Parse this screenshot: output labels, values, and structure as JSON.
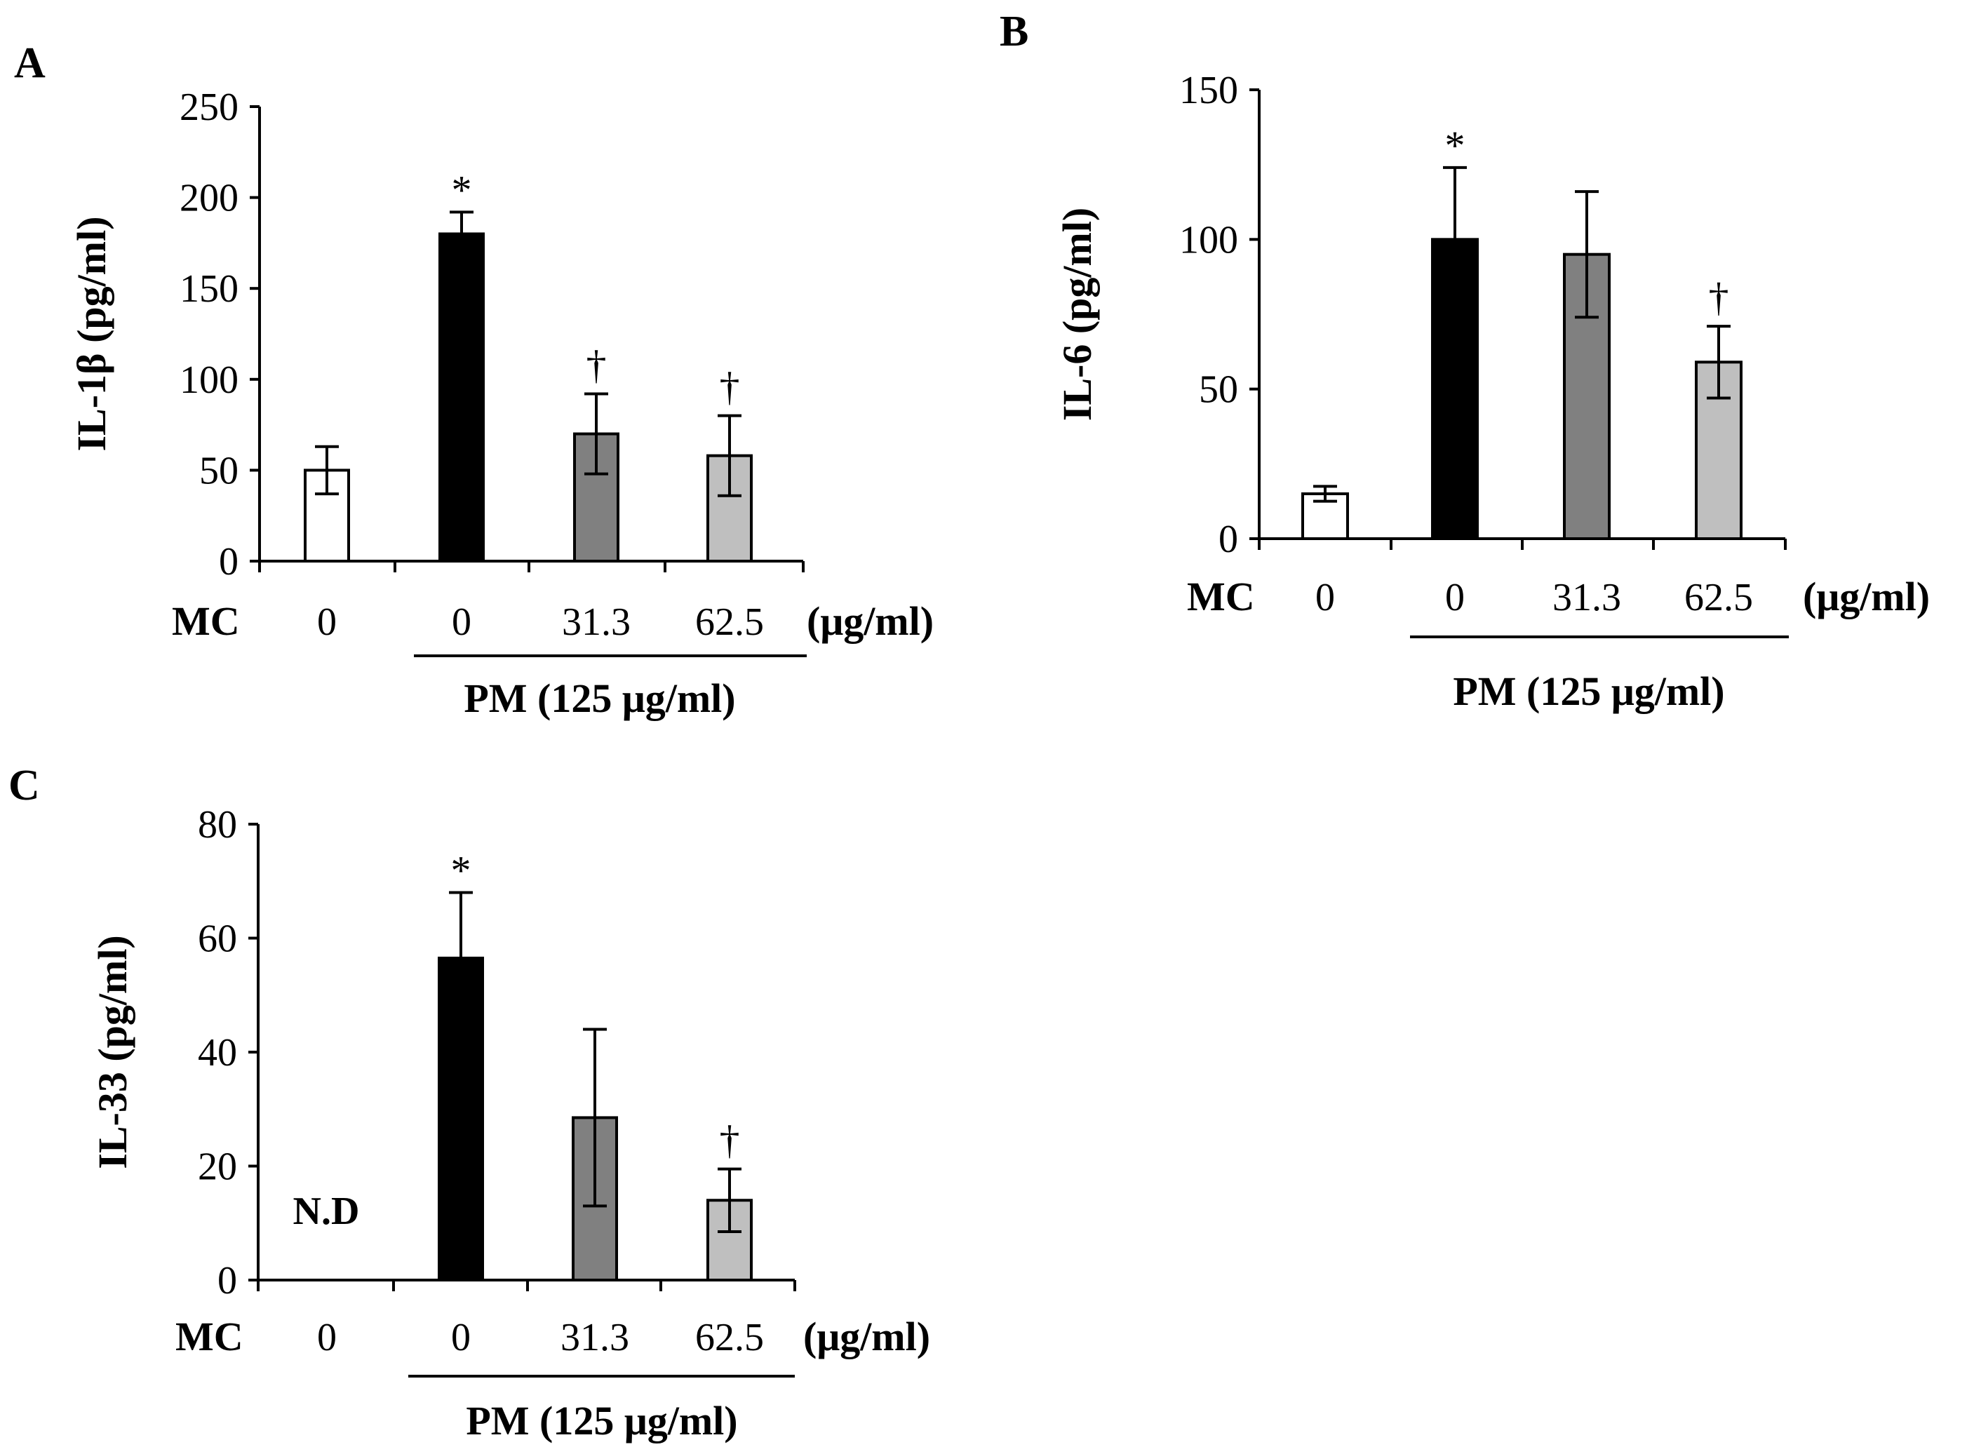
{
  "chart_data": [
    {
      "type": "bar",
      "panel": "A",
      "ylabel": "IL-1β (pg/ml)",
      "ylim": [
        0,
        250
      ],
      "yticks": [
        0,
        50,
        100,
        150,
        200,
        250
      ],
      "row_label": "MC",
      "categories": [
        "0",
        "0",
        "31.3",
        "62.5"
      ],
      "unit": "(μg/ml)",
      "group_label": "PM (125 μg/ml)",
      "values": [
        50,
        180,
        70,
        58
      ],
      "errors": [
        13,
        12,
        22,
        22
      ],
      "bar_colors": [
        "#ffffff",
        "#000000",
        "#808080",
        "#bfbfbf"
      ],
      "significance": [
        "",
        "*",
        "†",
        "†"
      ],
      "annotations": []
    },
    {
      "type": "bar",
      "panel": "B",
      "ylabel": "IL-6  (pg/ml)",
      "ylim": [
        0,
        150
      ],
      "yticks": [
        0,
        50,
        100,
        150
      ],
      "row_label": "MC",
      "categories": [
        "0",
        "0",
        "31.3",
        "62.5"
      ],
      "unit": "(μg/ml)",
      "group_label": "PM (125 μg/ml)",
      "values": [
        15,
        100,
        95,
        59
      ],
      "errors": [
        2.5,
        24,
        21,
        12
      ],
      "bar_colors": [
        "#ffffff",
        "#000000",
        "#808080",
        "#bfbfbf"
      ],
      "significance": [
        "",
        "*",
        "",
        "†"
      ],
      "annotations": []
    },
    {
      "type": "bar",
      "panel": "C",
      "ylabel": "IL-33 (pg/ml)",
      "ylim": [
        0,
        80
      ],
      "yticks": [
        0,
        20,
        40,
        60,
        80
      ],
      "row_label": "MC",
      "categories": [
        "0",
        "0",
        "31.3",
        "62.5"
      ],
      "unit": "(μg/ml)",
      "group_label": "PM (125 μg/ml)",
      "values": [
        null,
        56.5,
        28.5,
        14
      ],
      "errors": [
        0,
        11.5,
        15.5,
        5.5
      ],
      "bar_colors": [
        "#ffffff",
        "#000000",
        "#808080",
        "#bfbfbf"
      ],
      "significance": [
        "",
        "*",
        "",
        "†"
      ],
      "annotations": [
        "N.D"
      ]
    }
  ]
}
